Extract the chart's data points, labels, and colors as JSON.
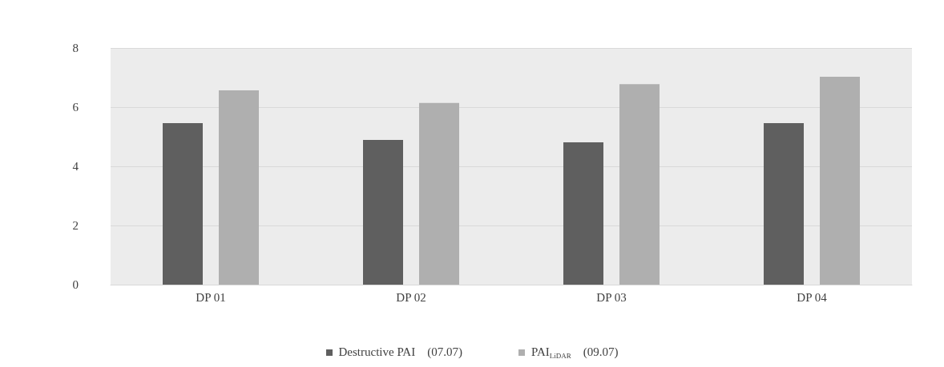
{
  "chart_data": {
    "type": "bar",
    "categories": [
      "DP 01",
      "DP 02",
      "DP 03",
      "DP 04"
    ],
    "series": [
      {
        "name": "Destructive PAI    (07.07)",
        "color": "#5f5f5f",
        "values": [
          5.46,
          4.89,
          4.81,
          5.46
        ]
      },
      {
        "name": "PAI$_{LiDAR}$    (09.07)",
        "color": "#afafaf",
        "values": [
          6.57,
          6.14,
          6.78,
          7.03
        ]
      }
    ],
    "ylim": [
      0,
      8
    ],
    "yticks": [
      0,
      2,
      4,
      6,
      8
    ],
    "grid": "y",
    "legend": "bottom"
  }
}
